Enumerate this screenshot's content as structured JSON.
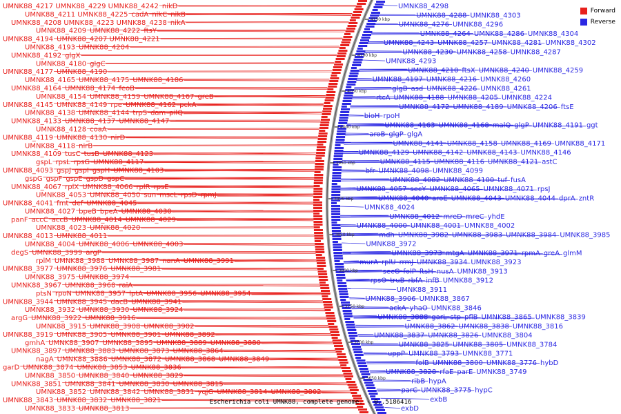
{
  "caption": "Escherichia coli UMNK88, complete genome. - 0..5186416",
  "legend": {
    "forward_label": "Forward",
    "reverse_label": "Reverse",
    "forward_color": "#e8201c",
    "reverse_color": "#2a27e3"
  },
  "colors": {
    "forward": "#e8201c",
    "reverse": "#2a27e3",
    "backbone": "#777777"
  },
  "ticks": [
    "4150 kbp",
    "4100 kbp",
    "4050 kbp",
    "4000 kbp",
    "3950 kbp",
    "3900 kbp",
    "3850 kbp",
    "3800 kbp",
    "3750 kbp",
    "3700 kbp",
    "3650 kbp"
  ],
  "forward_labels": [
    [
      "UMNK88_4217 UMNK88_4229 UMNK88_4242",
      "nikD"
    ],
    [
      "UMNK88_4211 UMNK88_4225",
      "cadA",
      "nikC",
      "nikB"
    ],
    [
      "UMNK88_4208 UMNK88_4223 UMNK88_4238",
      "nikA"
    ],
    [
      "UMNK88_4209",
      "UMNK88_4222",
      "ftsY"
    ],
    [
      "UMNK88_4194",
      "UMNK88_4207 UMNK88_4221"
    ],
    [
      "UMNK88_4193",
      "UMNK88_4204"
    ],
    [
      "UMNK88_4192",
      "glgX"
    ],
    [
      "UMNK88_4180",
      "glgC"
    ],
    [
      "UMNK88_4177",
      "UMNK88_4190"
    ],
    [
      "UMNK88_4165",
      "UMNK88_4175",
      "UMNK88_4186"
    ],
    [
      "UMNK88_4164",
      "UMNK88_4174",
      "feoB"
    ],
    [
      "UMNK88_4154",
      "UMNK88_4159",
      "UMNK88_4167",
      "greB"
    ],
    [
      "UMNK88_4145",
      "UMNK88_4149",
      "rpe",
      "UMNK88_4162",
      "pckA"
    ],
    [
      "UMNK88_4138",
      "UMNK88_4144",
      "trpS",
      "dam",
      "pilQ"
    ],
    [
      "UMNK88_4133",
      "UMNK88_4137",
      "UMNK88_4147"
    ],
    [
      "UMNK88_4128",
      "coaA"
    ],
    [
      "UMNK88_4119",
      "UMNK88_4130",
      "nirD"
    ],
    [
      "UMNK88_4118",
      "nirB"
    ],
    [
      "UMNK88_4109",
      "tusC",
      "tusB",
      "UMNK88_4123"
    ],
    [
      "gspL",
      "rpsL",
      "rpsG",
      "UMNK88_4117"
    ],
    [
      "UMNK88_4093",
      "gspJ",
      "gspI",
      "gspH",
      "UMNK88_4103"
    ],
    [
      "gspG",
      "gspF",
      "gspE",
      "gspD",
      "gspC"
    ],
    [
      "UMNK88_4067",
      "rplX",
      "UMNK88_4066",
      "rplR",
      "rpsE"
    ],
    [
      "UMNK88_4053",
      "UMNK88_4050",
      "sun",
      "mscL",
      "rpsD",
      "rpmJ"
    ],
    [
      "UMNK88_4041",
      "fmt",
      "def",
      "UMNK88_4045"
    ],
    [
      "UMNK88_4027",
      "bpeB",
      "bpeA",
      "UMNK88_4030"
    ],
    [
      "panF",
      "accC",
      "accB",
      "UMNK88_4014",
      "UMNK88_4029"
    ],
    [
      "UMNK88_4023",
      "UMNK88_4020"
    ],
    [
      "UMNK88_4013",
      "UMNK88_4011"
    ],
    [
      "UMNK88_4004",
      "UMNK88_4006",
      "UMNK88_4003"
    ],
    [
      "degS",
      "UMNK88_3999",
      "argP"
    ],
    [
      "rplM",
      "UMNK88_3988",
      "UMNK88_3987",
      "nanA",
      "UMNK88_3991"
    ],
    [
      "UMNK88_3977",
      "UMNK88_3976",
      "UMNK88_3981"
    ],
    [
      "UMNK88_3975",
      "UMNK88_3974"
    ],
    [
      "UMNK88_3967",
      "UMNK88_3968",
      "raiA"
    ],
    [
      "ptsN",
      "rpoN",
      "UMNK88_3957",
      "lptA",
      "UMNK88_3956",
      "UMNK88_3954"
    ],
    [
      "UMNK88_3944",
      "UMNK88_3945",
      "dacB",
      "UMNK88_3941"
    ],
    [
      "UMNK88_3932",
      "UMNK88_3930",
      "UMNK88_3924"
    ],
    [
      "argG",
      "UMNK88_3922",
      "UMNK88_3916"
    ],
    [
      "UMNK88_3915",
      "UMNK88_3908",
      "UMNK88_3902"
    ],
    [
      "UMNK88_3919",
      "UMNK88_3905",
      "UMNK88_3901",
      "UMNK88_3892"
    ],
    [
      "gmhA",
      "UMNK88_3907",
      "UMNK88_3895",
      "UMNK88_3889",
      "UMNK88_3880"
    ],
    [
      "UMNK88_3897",
      "UMNK88_3883",
      "UMNK88_3873",
      "UMNK88_3864"
    ],
    [
      "nagA",
      "UMNK88_3886",
      "UMNK88_3872",
      "UMNK88_3868",
      "UMNK88_3849"
    ],
    [
      "garD",
      "UMNK88_3874",
      "UMNK88_3853",
      "UMNK88_3836"
    ],
    [
      "UMNK88_3850",
      "UMNK88_3840",
      "UMNK88_3829"
    ],
    [
      "UMNK88_3851",
      "UMNK88_3841",
      "UMNK88_3830",
      "UMNK88_3815"
    ],
    [
      "UMNK88_3852",
      "UMNK88_3842",
      "UMNK88_3831",
      "yqjG",
      "UMNK88_3814",
      "UMNK88_3802"
    ],
    [
      "UMNK88_3843",
      "UMNK88_3832",
      "UMNK88_3821"
    ],
    [
      "UMNK88_3833",
      "UMNK88_3813"
    ]
  ],
  "reverse_labels": [
    [
      "UMNK88_4298"
    ],
    [
      "UMNK88_4288",
      "UMNK88_4303"
    ],
    [
      "UMNK88_4276",
      "UMNK88_4296"
    ],
    [
      "UMNK88_4264",
      "UMNK88_4286",
      "UMNK88_4304"
    ],
    [
      "UMNK88_4243",
      "UMNK88_4257",
      "UMNK88_4281",
      "UMNK88_4302"
    ],
    [
      "UMNK88_4230",
      "UMNK88_4258",
      "UMNK88_4287"
    ],
    [
      "UMNK88_4293"
    ],
    [
      "UMNK88_4210",
      "ftsX",
      "UMNK88_4240",
      "UMNK88_4259"
    ],
    [
      "UMNK88_4197",
      "UMNK88_4216",
      "UMNK88_4260"
    ],
    [
      "glgB",
      "asd",
      "UMNK88_4226",
      "UMNK88_4261"
    ],
    [
      "rtcA",
      "UMNK88_4188",
      "UMNK88_4205",
      "UMNK88_4224"
    ],
    [
      "UMNK88_4172",
      "UMNK88_4189",
      "UMNK88_4206",
      "ftsE"
    ],
    [
      "bioH",
      "rpoH"
    ],
    [
      "UMNK88_4163",
      "UMNK88_4168",
      "malQ",
      "glgP",
      "UMNK88_4191",
      "ggt"
    ],
    [
      "aroB",
      "glgP",
      "glgA"
    ],
    [
      "UMNK88_4141",
      "UMNK88_4158",
      "UMNK88_4169",
      "UMNK88_4171"
    ],
    [
      "UMNK88_4129",
      "UMNK88_4142",
      "UMNK88_4143",
      "UMNK88_4146"
    ],
    [
      "UMNK88_4115",
      "UMNK88_4116",
      "UMNK88_4121",
      "astC"
    ],
    [
      "bfr",
      "UMNK88_4098",
      "UMNK88_4099"
    ],
    [
      "UMNK88_4082",
      "UMNK88_4100",
      "tuf",
      "fusA"
    ],
    [
      "UMNK88_4057",
      "secY",
      "UMNK88_4065",
      "UMNK88_4071",
      "rpsJ"
    ],
    [
      "UMNK88_4040",
      "aroE",
      "UMNK88_4043",
      "UMNK88_4044",
      "dprA",
      "zntR"
    ],
    [
      "UMNK88_4024"
    ],
    [
      "UMNK88_4012",
      "mreD",
      "mreC",
      "yhdE"
    ],
    [
      "UMNK88_4000",
      "UMNK88_4001",
      "UMNK88_4002"
    ],
    [
      "mdh",
      "UMNK88_3982",
      "UMNK88_3983",
      "UMNK88_3984",
      "UMNK88_3985"
    ],
    [
      "UMNK88_3972"
    ],
    [
      "UMNK88_3973",
      "mtgA",
      "UMNK88_3971",
      "rpmA",
      "greA",
      "glmM"
    ],
    [
      "murA",
      "rplU",
      "rrmJ",
      "UMNK88_3934",
      "UMNK88_3923"
    ],
    [
      "secG",
      "folP",
      "ftsH",
      "nusA",
      "UMNK88_3913"
    ],
    [
      "rpsO",
      "truB",
      "rbfA",
      "infB",
      "UMNK88_3912"
    ],
    [
      "UMNK88_3911"
    ],
    [
      "UMNK88_3906",
      "UMNK88_3867"
    ],
    [
      "ackA",
      "yhaO",
      "UMNK88_3846"
    ],
    [
      "UMNK88_3888",
      "garL",
      "stp",
      "pflB",
      "UMNK88_3865",
      "UMNK88_3839"
    ],
    [
      "UMNK88_3862",
      "UMNK88_3838",
      "UMNK88_3816"
    ],
    [
      "UMNK88_3837",
      "UMNK88_3826",
      "UMNK88_3804"
    ],
    [
      "UMNK88_3825",
      "UMNK88_3805",
      "UMNK88_3784"
    ],
    [
      "uppP",
      "UMNK88_3793",
      "UMNK88_3771"
    ],
    [
      "folB",
      "UMNK88_3800",
      "UMNK88_3776",
      "hybD"
    ],
    [
      "UMNK88_3828",
      "rfaE",
      "parE",
      "UMNK88_3749"
    ],
    [
      "ribB",
      "hypA"
    ],
    [
      "parC",
      "UMNK88_3775",
      "hypC"
    ],
    [
      "exbB"
    ],
    [
      "exbD"
    ]
  ]
}
